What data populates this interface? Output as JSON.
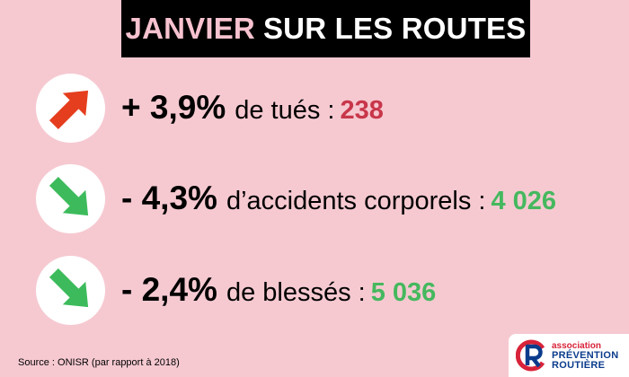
{
  "header": {
    "title_accent": "JANVIER",
    "title_main": "SUR LES ROUTES"
  },
  "stats": [
    {
      "direction": "up",
      "icon": "arrow-up-right-icon",
      "icon_color": "#e53e1e",
      "percent": "+ 3,9%",
      "label": "de tués :",
      "value": "238",
      "value_color": "#c8364a"
    },
    {
      "direction": "down",
      "icon": "arrow-down-right-icon",
      "icon_color": "#3dbb5c",
      "percent": "- 4,3%",
      "label": "d’accidents corporels :",
      "value": "4 026",
      "value_color": "#45b85e"
    },
    {
      "direction": "down",
      "icon": "arrow-down-right-icon",
      "icon_color": "#3dbb5c",
      "percent": "- 2,4%",
      "label": "de blessés :",
      "value": "5 036",
      "value_color": "#45b85e"
    }
  ],
  "footer": {
    "source": "Source : ONISR (par rapport à 2018)"
  },
  "logo": {
    "line1": "association",
    "line2": "PRÉVENTION",
    "line3": "ROUTIÈRE",
    "red": "#d8233a",
    "blue": "#0b3c8c"
  },
  "colors": {
    "background": "#f6c9d1",
    "title_bar": "#000000",
    "title_accent": "#f7c2cf"
  }
}
